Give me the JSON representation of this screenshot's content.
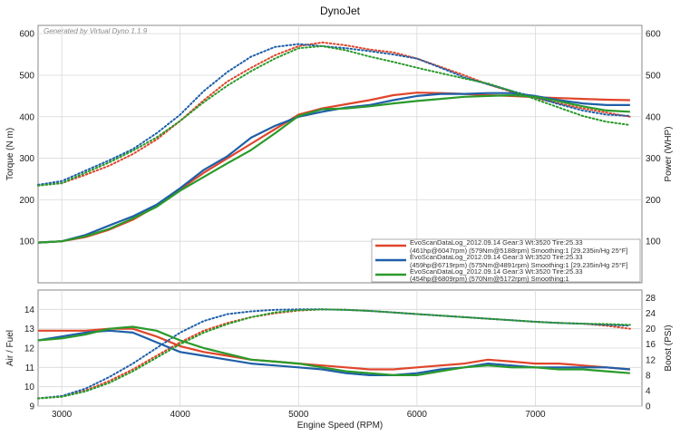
{
  "title": "DynoJet",
  "watermark": "Generated by Virtual Dyno 1.1.9",
  "chart_data": [
    {
      "type": "line",
      "panel": "top",
      "ylabel": "Torque (N m)",
      "y2label": "Power (WHP)",
      "xlim": [
        2800,
        7900
      ],
      "ylim": [
        0,
        620
      ],
      "y2lim": [
        0,
        620
      ],
      "xticks": [
        3000,
        4000,
        5000,
        6000,
        7000
      ],
      "yticks": [
        100,
        200,
        300,
        400,
        500,
        600
      ],
      "y2ticks": [
        100,
        200,
        300,
        400,
        500,
        600
      ],
      "grid": true,
      "legend_position": "bottom-right",
      "series": [
        {
          "name": "EvoScanDataLog_2012.09.14 Gear:3 Wt:3520 Tire:25.33",
          "detail": "(461hp@6047rpm) (579Nm@5188rpm) Smoothing:1 [29.235in/Hg 25°F]",
          "color": "#e0452b",
          "power": {
            "x": [
              2800,
              3000,
              3200,
              3400,
              3600,
              3800,
              4000,
              4200,
              4400,
              4600,
              4800,
              5000,
              5200,
              5400,
              5600,
              5800,
              6000,
              6200,
              6400,
              6600,
              6800,
              7000,
              7200,
              7400,
              7600,
              7800
            ],
            "y": [
              97,
              100,
              110,
              128,
              152,
              185,
              225,
              265,
              300,
              335,
              370,
              405,
              420,
              430,
              440,
              452,
              458,
              457,
              455,
              452,
              450,
              447,
              445,
              443,
              441,
              440
            ]
          },
          "torque": {
            "x": [
              2800,
              3000,
              3200,
              3400,
              3600,
              3800,
              4000,
              4200,
              4400,
              4600,
              4800,
              5000,
              5200,
              5400,
              5600,
              5800,
              6000,
              6200,
              6400,
              6600,
              6800,
              7000,
              7200,
              7400,
              7600,
              7800
            ],
            "y": [
              235,
              240,
              260,
              282,
              310,
              345,
              390,
              440,
              485,
              518,
              548,
              570,
              579,
              572,
              562,
              555,
              540,
              520,
              500,
              478,
              460,
              445,
              432,
              420,
              410,
              400
            ]
          }
        },
        {
          "name": "EvoScanDataLog_2012.09.14 Gear:3 Wt:3520 Tire:25.33",
          "detail": "(459hp@6719rpm) (575Nm@4891rpm) Smoothing:1 [29.235in/Hg 25°F]",
          "color": "#1f5fa8",
          "power": {
            "x": [
              2800,
              3000,
              3200,
              3400,
              3600,
              3800,
              4000,
              4200,
              4400,
              4600,
              4800,
              5000,
              5200,
              5400,
              5600,
              5800,
              6000,
              6200,
              6400,
              6600,
              6800,
              7000,
              7200,
              7400,
              7600,
              7800
            ],
            "y": [
              97,
              100,
              115,
              138,
              160,
              188,
              228,
              272,
              305,
              350,
              378,
              400,
              412,
              422,
              428,
              440,
              450,
              455,
              455,
              457,
              457,
              450,
              440,
              432,
              428,
              428
            ]
          },
          "torque": {
            "x": [
              2800,
              3000,
              3200,
              3400,
              3600,
              3800,
              4000,
              4200,
              4400,
              4600,
              4800,
              5000,
              5200,
              5400,
              5600,
              5800,
              6000,
              6200,
              6400,
              6600,
              6800,
              7000,
              7200,
              7400,
              7600,
              7800
            ],
            "y": [
              236,
              245,
              270,
              295,
              322,
              360,
              405,
              462,
              508,
              545,
              568,
              575,
              570,
              565,
              558,
              550,
              540,
              518,
              495,
              478,
              462,
              447,
              430,
              415,
              405,
              402
            ]
          }
        },
        {
          "name": "EvoScanDataLog_2012.09.14 Gear:3 Wt:3520 Tire:25.33",
          "detail": "(454hp@6809rpm) (570Nm@5172rpm) Smoothing:1",
          "color": "#2a9a2a",
          "power": {
            "x": [
              2800,
              3000,
              3200,
              3400,
              3600,
              3800,
              4000,
              4200,
              4400,
              4600,
              4800,
              5000,
              5200,
              5400,
              5600,
              5800,
              6000,
              6200,
              6400,
              6600,
              6800,
              7000,
              7200,
              7400,
              7600,
              7800
            ],
            "y": [
              97,
              100,
              112,
              130,
              155,
              183,
              222,
              255,
              288,
              320,
              360,
              402,
              418,
              420,
              425,
              432,
              438,
              443,
              448,
              450,
              452,
              448,
              437,
              425,
              415,
              412
            ]
          },
          "torque": {
            "x": [
              2800,
              3000,
              3200,
              3400,
              3600,
              3800,
              4000,
              4200,
              4400,
              4600,
              4800,
              5000,
              5200,
              5400,
              5600,
              5800,
              6000,
              6200,
              6400,
              6600,
              6800,
              7000,
              7200,
              7400,
              7600,
              7800
            ],
            "y": [
              234,
              240,
              265,
              290,
              318,
              350,
              390,
              435,
              475,
              510,
              540,
              565,
              570,
              560,
              545,
              532,
              518,
              505,
              492,
              480,
              462,
              442,
              422,
              402,
              388,
              380
            ]
          }
        }
      ]
    },
    {
      "type": "line",
      "panel": "bottom",
      "xlabel": "Engine Speed (RPM)",
      "ylabel": "Air / Fuel",
      "y2label": "Boost (PSI)",
      "xlim": [
        2800,
        7900
      ],
      "ylim": [
        9,
        15
      ],
      "y2lim": [
        0,
        30
      ],
      "xticks": [
        3000,
        4000,
        5000,
        6000,
        7000
      ],
      "yticks": [
        9,
        10,
        11,
        12,
        13,
        14
      ],
      "y2ticks": [
        0,
        4,
        8,
        12,
        16,
        20,
        24,
        28
      ],
      "grid": true,
      "series": [
        {
          "color": "#e0452b",
          "afr": {
            "x": [
              2800,
              3000,
              3200,
              3400,
              3600,
              3800,
              4000,
              4200,
              4400,
              4600,
              4800,
              5000,
              5200,
              5400,
              5600,
              5800,
              6000,
              6200,
              6400,
              6600,
              6800,
              7000,
              7200,
              7400,
              7600,
              7800
            ],
            "y": [
              12.9,
              12.9,
              12.9,
              13.0,
              13.0,
              12.6,
              12.1,
              11.8,
              11.6,
              11.4,
              11.3,
              11.2,
              11.1,
              11.0,
              10.9,
              10.9,
              11.0,
              11.1,
              11.2,
              11.4,
              11.3,
              11.2,
              11.2,
              11.1,
              11.0,
              10.9
            ]
          },
          "boost": {
            "x": [
              2800,
              3000,
              3200,
              3400,
              3600,
              3800,
              4000,
              4200,
              4400,
              4600,
              4800,
              5000,
              5200,
              5400,
              5600,
              5800,
              6000,
              6200,
              6400,
              6600,
              6800,
              7000,
              7200,
              7400,
              7600,
              7800
            ],
            "y": [
              2.0,
              2.5,
              4.0,
              6.5,
              9.5,
              13.0,
              16.5,
              19.5,
              21.5,
              23.0,
              24.0,
              24.7,
              25.0,
              24.9,
              24.6,
              24.2,
              23.8,
              23.4,
              23.0,
              22.6,
              22.2,
              21.8,
              21.5,
              21.3,
              20.8,
              20.0
            ]
          }
        },
        {
          "color": "#1f5fa8",
          "afr": {
            "x": [
              2800,
              3000,
              3200,
              3400,
              3600,
              3800,
              4000,
              4200,
              4400,
              4600,
              4800,
              5000,
              5200,
              5400,
              5600,
              5800,
              6000,
              6200,
              6400,
              6600,
              6800,
              7000,
              7200,
              7400,
              7600,
              7800
            ],
            "y": [
              12.4,
              12.6,
              12.8,
              12.9,
              12.8,
              12.3,
              11.8,
              11.6,
              11.4,
              11.2,
              11.1,
              11.0,
              10.9,
              10.7,
              10.6,
              10.6,
              10.7,
              10.9,
              11.0,
              11.2,
              11.1,
              11.0,
              11.0,
              11.0,
              11.0,
              10.9
            ]
          },
          "boost": {
            "x": [
              2800,
              3000,
              3200,
              3400,
              3600,
              3800,
              4000,
              4200,
              4400,
              4600,
              4800,
              5000,
              5200,
              5400,
              5600,
              5800,
              6000,
              6200,
              6400,
              6600,
              6800,
              7000,
              7200,
              7400,
              7600,
              7800
            ],
            "y": [
              2.0,
              2.6,
              4.5,
              7.5,
              11.0,
              15.0,
              19.0,
              22.0,
              23.8,
              24.5,
              24.9,
              25.0,
              25.0,
              24.9,
              24.6,
              24.2,
              23.8,
              23.4,
              23.0,
              22.6,
              22.2,
              21.8,
              21.5,
              21.3,
              21.0,
              20.8
            ]
          }
        },
        {
          "color": "#2a9a2a",
          "afr": {
            "x": [
              2800,
              3000,
              3200,
              3400,
              3600,
              3800,
              4000,
              4200,
              4400,
              4600,
              4800,
              5000,
              5200,
              5400,
              5600,
              5800,
              6000,
              6200,
              6400,
              6600,
              6800,
              7000,
              7200,
              7400,
              7600,
              7800
            ],
            "y": [
              12.4,
              12.5,
              12.7,
              13.0,
              13.1,
              12.9,
              12.4,
              12.0,
              11.7,
              11.4,
              11.3,
              11.2,
              11.0,
              10.8,
              10.7,
              10.6,
              10.6,
              10.8,
              11.0,
              11.1,
              11.0,
              11.0,
              10.9,
              10.9,
              10.8,
              10.7
            ]
          },
          "boost": {
            "x": [
              2800,
              3000,
              3200,
              3400,
              3600,
              3800,
              4000,
              4200,
              4400,
              4600,
              4800,
              5000,
              5200,
              5400,
              5600,
              5800,
              6000,
              6200,
              6400,
              6600,
              6800,
              7000,
              7200,
              7400,
              7600,
              7800
            ],
            "y": [
              2.0,
              2.4,
              3.8,
              6.0,
              9.0,
              12.5,
              16.0,
              19.0,
              21.2,
              23.0,
              24.2,
              24.8,
              25.0,
              24.9,
              24.6,
              24.2,
              23.8,
              23.4,
              23.0,
              22.6,
              22.2,
              21.8,
              21.5,
              21.3,
              21.2,
              21.0
            ]
          }
        }
      ]
    }
  ]
}
